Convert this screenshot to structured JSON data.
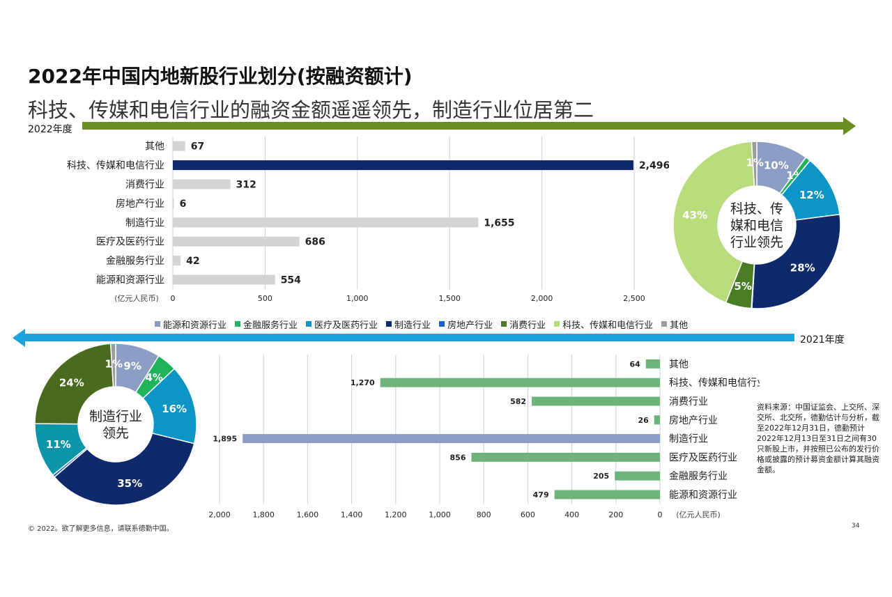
{
  "header": {
    "title": "2022年中国内地新股行业划分(按融资额计)",
    "subtitle": "科技、传媒和电信行业的融资金额遥遥领先，制造行业位居第二"
  },
  "colors": {
    "arrow_2022": "#6b8e23",
    "arrow_2021": "#1aa3dc",
    "bar_highlight_2022": "#0f2a6b",
    "bar_gray": "#d4d4d4",
    "bar_2021": "#6db37a",
    "bar_highlight_2021": "#8b9dc3"
  },
  "legend": {
    "items": [
      {
        "label": "能源和资源行业",
        "color": "#8b9dc3"
      },
      {
        "label": "金融服务行业",
        "color": "#20b45a"
      },
      {
        "label": "医疗及医药行业",
        "color": "#0b95c4"
      },
      {
        "label": "制造行业",
        "color": "#0f2a6b"
      },
      {
        "label": "房地产行业",
        "color": "#1f5fc8"
      },
      {
        "label": "消费行业",
        "color": "#4a7d23"
      },
      {
        "label": "科技、传媒和电信行业",
        "color": "#b8dc7c"
      },
      {
        "label": "其他",
        "color": "#9c9c9c"
      }
    ]
  },
  "chart_data": [
    {
      "type": "bar",
      "year_label": "2022年度",
      "orientation": "horizontal",
      "categories": [
        "其他",
        "科技、传媒和电信行业",
        "消费行业",
        "房地产行业",
        "制造行业",
        "医疗及医药行业",
        "金融服务行业",
        "能源和资源行业"
      ],
      "values": [
        67,
        2496,
        312,
        6,
        1655,
        686,
        42,
        554
      ],
      "value_labels": [
        "67",
        "2,496",
        "312",
        "6",
        "1,655",
        "686",
        "42",
        "554"
      ],
      "highlight_index": 1,
      "xlim": [
        0,
        2500
      ],
      "xticks": [
        "0",
        "500",
        "1,000",
        "1,500",
        "2,000",
        "2,500"
      ],
      "xlabel": "(亿元人民币)",
      "grid": true
    },
    {
      "type": "pie",
      "year_label": "2022年度",
      "center_text": [
        "科技、传",
        "媒和电信",
        "行业领先"
      ],
      "slices": [
        {
          "category": "能源和资源行业",
          "value": 10,
          "label": "10%",
          "color": "#8b9dc3"
        },
        {
          "category": "金融服务行业",
          "value": 1,
          "label": "1%",
          "color": "#20b45a"
        },
        {
          "category": "医疗及医药行业",
          "value": 12,
          "label": "12%",
          "color": "#0b95c4"
        },
        {
          "category": "制造行业",
          "value": 28,
          "label": "28%",
          "color": "#0f2a6b"
        },
        {
          "category": "房地产行业",
          "value": 0.1,
          "label": "",
          "color": "#1f5fc8"
        },
        {
          "category": "消费行业",
          "value": 5,
          "label": "5%",
          "color": "#4a7d23"
        },
        {
          "category": "科技、传媒和电信行业",
          "value": 43,
          "label": "43%",
          "color": "#b8dc7c"
        },
        {
          "category": "其他",
          "value": 1,
          "label": "1%",
          "color": "#9c9c9c"
        }
      ]
    },
    {
      "type": "bar",
      "year_label": "2021年度",
      "orientation": "horizontal-reversed",
      "categories": [
        "其他",
        "科技、传媒和电信行业",
        "消费行业",
        "房地产行业",
        "制造行业",
        "医疗及医药行业",
        "金融服务行业",
        "能源和资源行业"
      ],
      "values": [
        64,
        1270,
        582,
        26,
        1895,
        856,
        205,
        479
      ],
      "value_labels": [
        "64",
        "1,270",
        "582",
        "26",
        "1,895",
        "856",
        "205",
        "479"
      ],
      "highlight_index": 4,
      "xlim": [
        0,
        2000
      ],
      "xticks": [
        "2,000",
        "1,800",
        "1,600",
        "1,400",
        "1,200",
        "1,000",
        "800",
        "600",
        "400",
        "200",
        "0"
      ],
      "xlabel": "(亿元人民币)",
      "grid": true
    },
    {
      "type": "pie",
      "year_label": "2021年度",
      "center_text": [
        "制造行业",
        "领先"
      ],
      "slices": [
        {
          "category": "能源和资源行业",
          "value": 9,
          "label": "9%",
          "color": "#8b9dc3"
        },
        {
          "category": "金融服务行业",
          "value": 4,
          "label": "4%",
          "color": "#20b45a"
        },
        {
          "category": "医疗及医药行业",
          "value": 16,
          "label": "16%",
          "color": "#0b95c4"
        },
        {
          "category": "制造行业",
          "value": 35,
          "label": "35%",
          "color": "#0f2a6b"
        },
        {
          "category": "房地产行业",
          "value": 0.5,
          "label": "",
          "color": "#1f5fc8"
        },
        {
          "category": "消费行业",
          "value": 11,
          "label": "11%",
          "color": "#0b95a8"
        },
        {
          "category": "科技、传媒和电信行业",
          "value": 24,
          "label": "24%",
          "color": "#4a6b1f"
        },
        {
          "category": "其他",
          "value": 1,
          "label": "1%",
          "color": "#9c9c9c"
        }
      ]
    }
  ],
  "source_text": "资料来源：中国证监会、上交所、深交所、北交所，德勤估计与分析，截至2022年12月31日，德勤预计2022年12月13日至31日之间有30只新股上市，并按照已公布的发行价格或披露的预计募资金额计算其融资金额。",
  "footer": {
    "copyright": "© 2022。欲了解更多信息，请联系德勤中国。",
    "page_number": "34"
  }
}
